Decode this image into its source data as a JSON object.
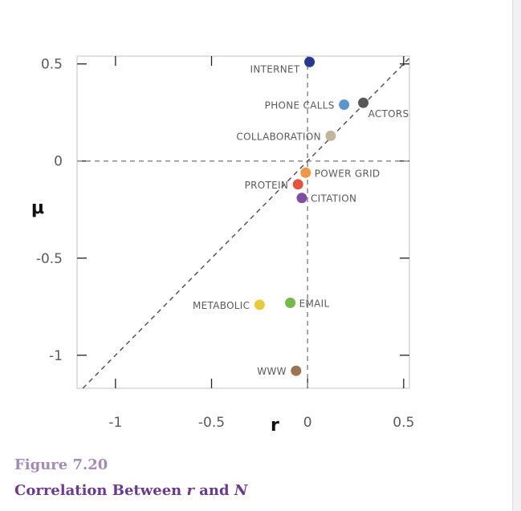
{
  "chart_data": {
    "type": "scatter",
    "xlabel": "r",
    "ylabel": "μ",
    "xlim": [
      -1.2,
      0.53
    ],
    "ylim": [
      -1.17,
      0.54
    ],
    "xticks": [
      -1,
      -0.5,
      0,
      0.5
    ],
    "xtick_labels": [
      "-1",
      "-0.5",
      "0",
      "0.5"
    ],
    "yticks": [
      0.5,
      0,
      -0.5,
      -1
    ],
    "ytick_labels": [
      "0.5",
      "0",
      "-0.5",
      "-1"
    ],
    "reference_lines": [
      "x = 0",
      "y = 0",
      "y = x"
    ],
    "points": [
      {
        "label": "INTERNET",
        "x": 0.01,
        "y": 0.51,
        "color": "#253a8e",
        "label_side": "left"
      },
      {
        "label": "PHONE CALLS",
        "x": 0.19,
        "y": 0.29,
        "color": "#5b94cf",
        "label_side": "left"
      },
      {
        "label": "ACTORS",
        "x": 0.29,
        "y": 0.3,
        "color": "#555759",
        "label_side": "below-right"
      },
      {
        "label": "COLLABORATION",
        "x": 0.12,
        "y": 0.13,
        "color": "#c2b59c",
        "label_side": "left"
      },
      {
        "label": "POWER GRID",
        "x": -0.01,
        "y": -0.06,
        "color": "#f0954a",
        "label_side": "right"
      },
      {
        "label": "PROTEIN",
        "x": -0.05,
        "y": -0.12,
        "color": "#e4543b",
        "label_side": "left"
      },
      {
        "label": "CITATION",
        "x": -0.03,
        "y": -0.19,
        "color": "#7e4f9e",
        "label_side": "right"
      },
      {
        "label": "EMAIL",
        "x": -0.09,
        "y": -0.73,
        "color": "#76b84b",
        "label_side": "right"
      },
      {
        "label": "METABOLIC",
        "x": -0.25,
        "y": -0.74,
        "color": "#e8cb3c",
        "label_side": "left"
      },
      {
        "label": "WWW",
        "x": -0.06,
        "y": -1.08,
        "color": "#9b7552",
        "label_side": "left"
      }
    ]
  },
  "caption": {
    "figure_number": "Figure 7.20",
    "title_prefix": "Correlation Between ",
    "title_r": "r",
    "title_and": " and ",
    "title_n": "N"
  }
}
